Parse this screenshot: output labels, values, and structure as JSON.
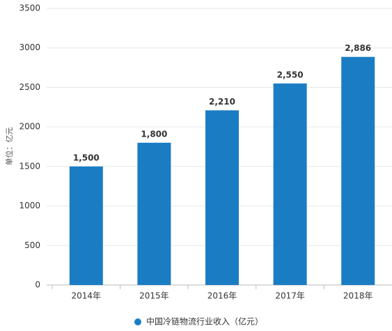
{
  "chart_data": {
    "type": "bar",
    "y_label": "单位：亿元",
    "categories": [
      "2014年",
      "2015年",
      "2016年",
      "2017年",
      "2018年"
    ],
    "series": [
      {
        "name": "中国冷链物流行业收入（亿元）",
        "color": "#1a7dc4",
        "values": [
          1500,
          1800,
          2210,
          2550,
          2886
        ],
        "value_labels": [
          "1,500",
          "1,800",
          "2,210",
          "2,550",
          "2,886"
        ]
      }
    ],
    "ylim": [
      0,
      3500
    ],
    "yticks": [
      0,
      500,
      1000,
      1500,
      2000,
      2500,
      3000,
      3500
    ],
    "grid": true
  }
}
